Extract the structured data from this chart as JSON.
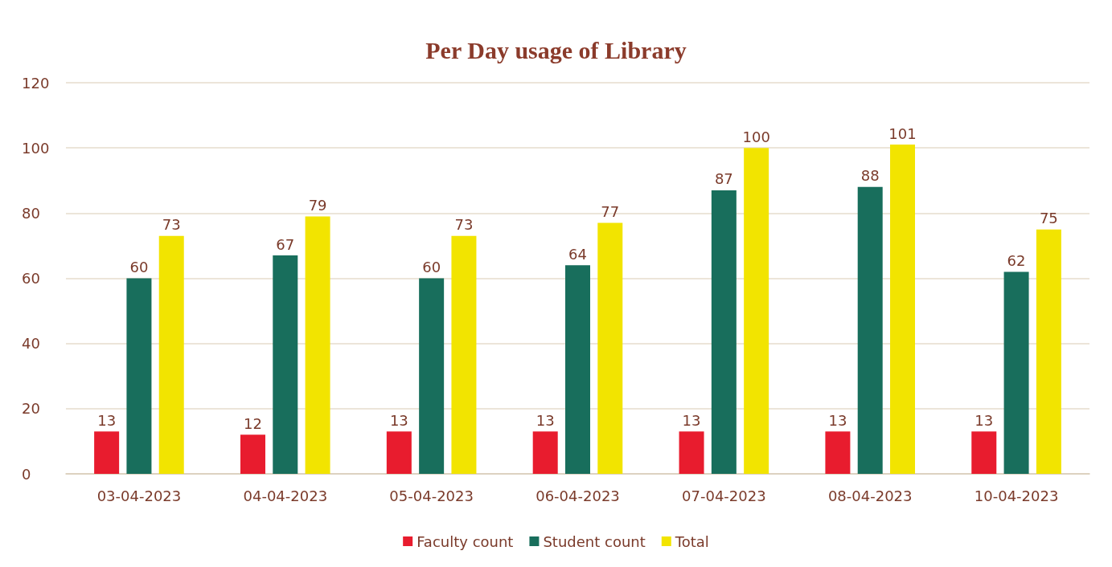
{
  "chart_data": {
    "type": "bar",
    "title": "Per Day usage of Library",
    "categories": [
      "03-04-2023",
      "04-04-2023",
      "05-04-2023",
      "06-04-2023",
      "07-04-2023",
      "08-04-2023",
      "10-04-2023"
    ],
    "series": [
      {
        "name": "Faculty count",
        "color": "#e81c2e",
        "values": [
          13,
          12,
          13,
          13,
          13,
          13,
          13
        ]
      },
      {
        "name": "Student count",
        "color": "#186e5c",
        "values": [
          60,
          67,
          60,
          64,
          87,
          88,
          62
        ]
      },
      {
        "name": "Total",
        "color": "#f2e400",
        "values": [
          73,
          79,
          73,
          77,
          100,
          101,
          75
        ]
      }
    ],
    "ylim": [
      0,
      120
    ],
    "yticks": [
      0,
      20,
      40,
      60,
      80,
      100,
      120
    ],
    "grid": "y",
    "legend": "bottom",
    "data_labels": true
  }
}
